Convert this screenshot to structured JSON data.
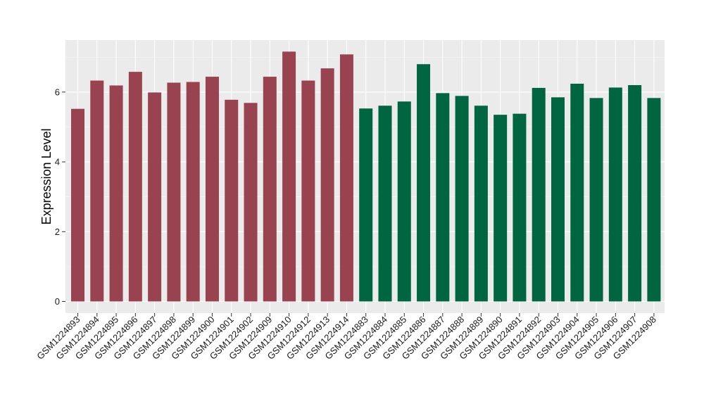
{
  "chart_data": {
    "type": "bar",
    "title": "",
    "xlabel": "",
    "ylabel": "Expression Level",
    "ylim": [
      0,
      7.5
    ],
    "yticks": [
      0,
      2,
      4,
      6
    ],
    "grid": true,
    "background": "#ebebeb",
    "categories": [
      "GSM1224893",
      "GSM1224894",
      "GSM1224895",
      "GSM1224896",
      "GSM1224897",
      "GSM1224898",
      "GSM1224899",
      "GSM1224900",
      "GSM1224901",
      "GSM1224902",
      "GSM1224909",
      "GSM1224910",
      "GSM1224912",
      "GSM1224913",
      "GSM1224914",
      "GSM1224883",
      "GSM1224884",
      "GSM1224885",
      "GSM1224886",
      "GSM1224887",
      "GSM1224888",
      "GSM1224889",
      "GSM1224890",
      "GSM1224891",
      "GSM1224892",
      "GSM1224903",
      "GSM1224904",
      "GSM1224905",
      "GSM1224906",
      "GSM1224907",
      "GSM1224908"
    ],
    "values": [
      5.52,
      6.33,
      6.19,
      6.58,
      5.99,
      6.27,
      6.29,
      6.44,
      5.78,
      5.69,
      6.44,
      7.16,
      6.33,
      6.68,
      7.08,
      5.53,
      5.61,
      5.73,
      6.8,
      5.97,
      5.89,
      5.61,
      5.35,
      5.38,
      6.12,
      5.85,
      6.24,
      5.83,
      6.13,
      6.2,
      5.83
    ],
    "groups": [
      0,
      0,
      0,
      0,
      0,
      0,
      0,
      0,
      0,
      0,
      0,
      0,
      0,
      0,
      0,
      1,
      1,
      1,
      1,
      1,
      1,
      1,
      1,
      1,
      1,
      1,
      1,
      1,
      1,
      1,
      1
    ],
    "group_colors": [
      "#9a4350",
      "#006541"
    ]
  }
}
